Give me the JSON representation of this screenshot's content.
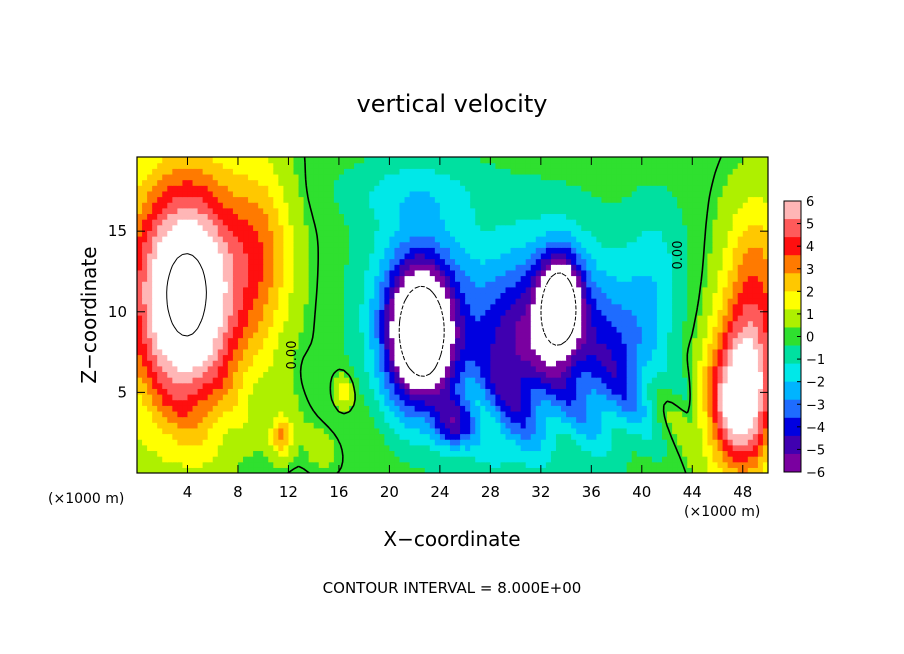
{
  "chart_data": {
    "type": "heatmap",
    "title": "vertical velocity",
    "xlabel": "X−coordinate",
    "ylabel": "Z−coordinate",
    "x_unit_left": "(×1000 m)",
    "x_unit_right": "(×1000 m)",
    "xlim": [
      0,
      50
    ],
    "ylim": [
      0,
      19.6
    ],
    "x_ticks": [
      4,
      8,
      12,
      16,
      20,
      24,
      28,
      32,
      36,
      40,
      44,
      48
    ],
    "y_ticks": [
      5,
      10,
      15
    ],
    "colorbar": {
      "ticks": [
        "6",
        "5",
        "4",
        "3",
        "2",
        "1",
        "0",
        "−1",
        "−2",
        "−3",
        "−4",
        "−5",
        "−6"
      ],
      "range": [
        -6,
        6
      ],
      "colors": [
        "#ffb6b6",
        "#ff5a5a",
        "#ff0f0f",
        "#ff7a00",
        "#ffc800",
        "#ffff00",
        "#aef000",
        "#2fe02f",
        "#00e0a0",
        "#00e8e8",
        "#00b4ff",
        "#1e6cff",
        "#0000e0",
        "#4000b0",
        "#7a00a0"
      ]
    },
    "contour_labels": [
      "0.00",
      "0.00"
    ],
    "footer": "CONTOUR INTERVAL = 8.000E+00",
    "features": [
      {
        "x": 3.8,
        "z": 10.5,
        "sx": 4.2,
        "sz": 7.5,
        "w": 7.0
      },
      {
        "x": 4.6,
        "z": 12.5,
        "sx": 6.0,
        "sz": 6.5,
        "w": 2.2
      },
      {
        "x": 10.0,
        "z": 14.0,
        "sx": 2.4,
        "sz": 5.5,
        "w": 2.0
      },
      {
        "x": 11.5,
        "z": 2.4,
        "sx": 0.9,
        "sz": 1.3,
        "w": 3.0
      },
      {
        "x": 16.3,
        "z": 5.0,
        "sx": 0.7,
        "sz": 1.0,
        "w": 2.0
      },
      {
        "x": 47.8,
        "z": 4.5,
        "sx": 2.6,
        "sz": 4.5,
        "w": 7.0
      },
      {
        "x": 49.0,
        "z": 11.0,
        "sx": 2.6,
        "sz": 6.0,
        "w": 3.5
      },
      {
        "x": 22.5,
        "z": 8.5,
        "sx": 2.6,
        "sz": 4.2,
        "w": -9.0
      },
      {
        "x": 22.5,
        "z": 10.5,
        "sx": 4.5,
        "sz": 6.0,
        "w": -2.8
      },
      {
        "x": 25.0,
        "z": 3.0,
        "sx": 1.5,
        "sz": 1.5,
        "w": -3.5
      },
      {
        "x": 29.5,
        "z": 7.0,
        "sx": 3.5,
        "sz": 6.0,
        "w": -3.5
      },
      {
        "x": 33.5,
        "z": 10.5,
        "sx": 1.6,
        "sz": 2.8,
        "w": -8.0
      },
      {
        "x": 33.5,
        "z": 9.0,
        "sx": 4.5,
        "sz": 6.0,
        "w": -3.5
      },
      {
        "x": 38.0,
        "z": 6.5,
        "sx": 3.0,
        "sz": 4.5,
        "w": -2.8
      },
      {
        "x": 41.0,
        "z": 12.0,
        "sx": 2.5,
        "sz": 5.0,
        "w": -1.6
      },
      {
        "x": 14.5,
        "z": 1.5,
        "sx": 1.8,
        "sz": 1.5,
        "w": 0.6
      },
      {
        "x": 22.0,
        "z": 17.5,
        "sx": 6.0,
        "sz": 2.0,
        "w": -1.2
      }
    ]
  }
}
